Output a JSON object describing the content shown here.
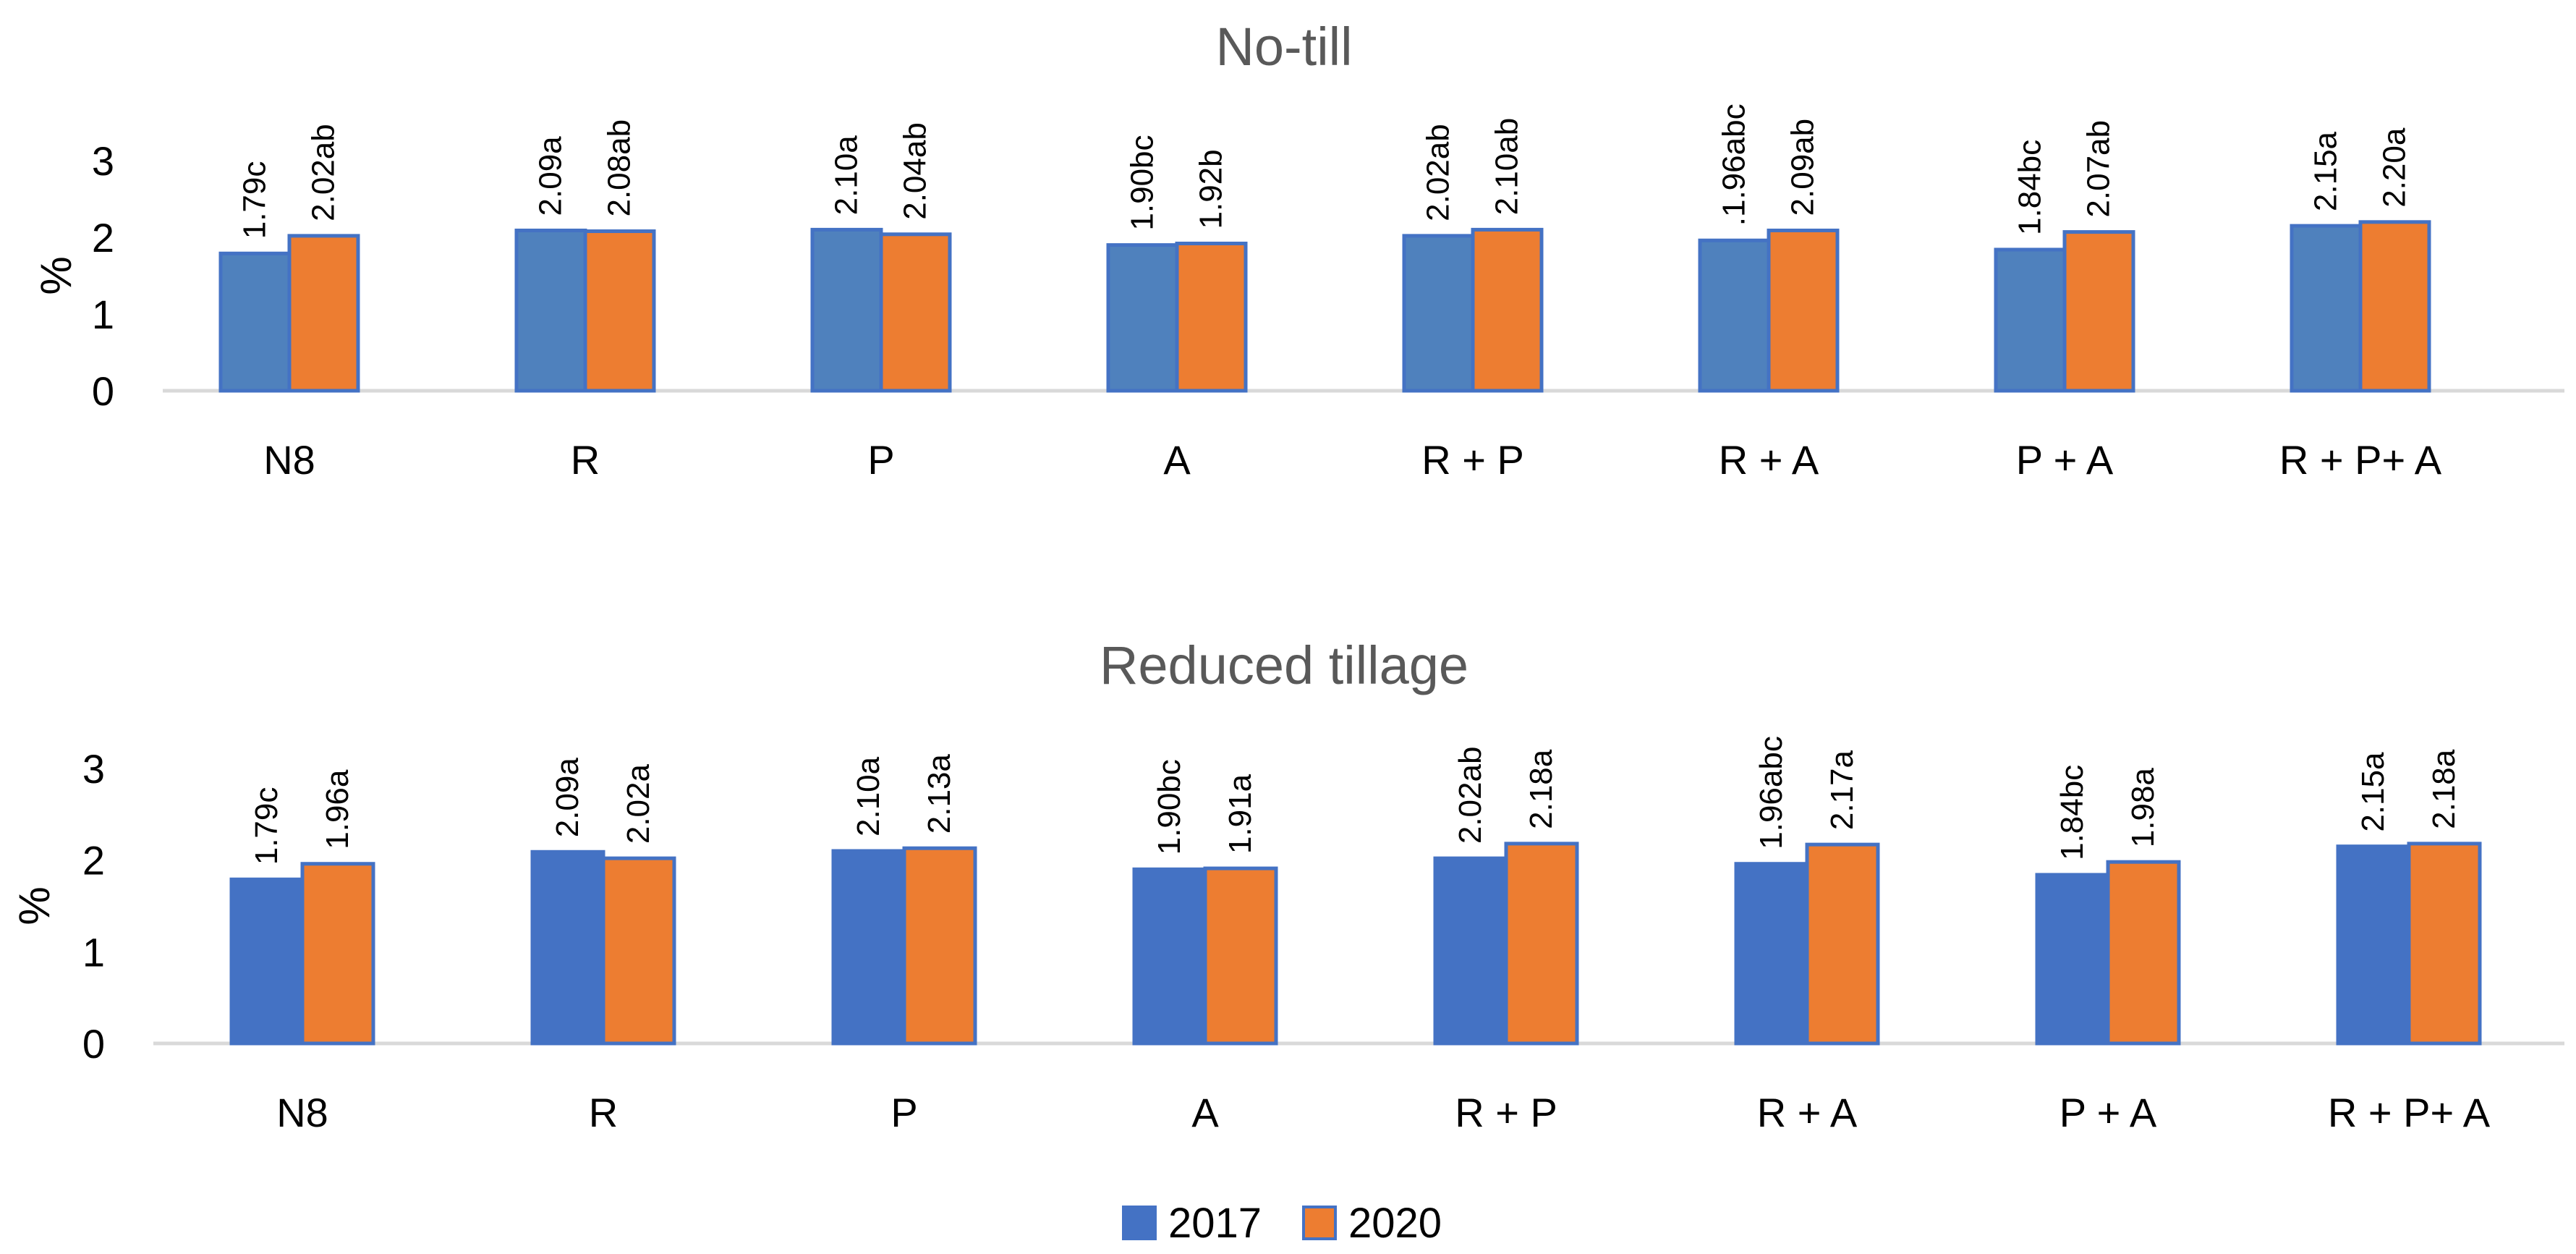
{
  "legend": [
    {
      "name": "2017",
      "color": "#4472C4"
    },
    {
      "name": "2020",
      "color": "#ED7D31"
    }
  ],
  "chart_data": [
    {
      "type": "bar",
      "title": "No-till",
      "xlabel": "",
      "ylabel": "%",
      "ylim": [
        0,
        3
      ],
      "yticks": [
        0,
        1,
        2,
        3
      ],
      "grid": false,
      "categories": [
        "N8",
        "R",
        "P",
        "A",
        "R + P",
        "R + A",
        "P +  A",
        "R + P+ A"
      ],
      "series": [
        {
          "name": "2017",
          "color": "#4F81BD",
          "values": [
            1.79,
            2.09,
            2.1,
            1.9,
            2.02,
            1.96,
            1.84,
            2.15
          ],
          "labels": [
            "1.79c",
            "2.09a",
            "2.10a",
            "1.90bc",
            "2.02ab",
            ".1.96abc",
            "1.84bc",
            "2.15a"
          ]
        },
        {
          "name": "2020",
          "color": "#ED7D31",
          "values": [
            2.02,
            2.08,
            2.04,
            1.92,
            2.1,
            2.09,
            2.07,
            2.2
          ],
          "labels": [
            "2.02ab",
            "2.08ab",
            "2.04ab",
            "1.92b",
            "2.10ab",
            "2.09ab",
            "2.07ab",
            "2.20a"
          ]
        }
      ]
    },
    {
      "type": "bar",
      "title": "Reduced tillage",
      "xlabel": "",
      "ylabel": "%",
      "ylim": [
        0,
        3
      ],
      "yticks": [
        0,
        1,
        2,
        3
      ],
      "grid": false,
      "categories": [
        "N8",
        "R",
        "P",
        "A",
        "R + P",
        "R + A",
        "P +  A",
        "R + P+ A"
      ],
      "series": [
        {
          "name": "2017",
          "color": "#4472C4",
          "values": [
            1.79,
            2.09,
            2.1,
            1.9,
            2.02,
            1.96,
            1.84,
            2.15
          ],
          "labels": [
            "1.79c",
            "2.09a",
            "2.10a",
            "1.90bc",
            "2.02ab",
            "1.96abc",
            "1.84bc",
            "2.15a"
          ]
        },
        {
          "name": "2020",
          "color": "#ED7D31",
          "values": [
            1.96,
            2.02,
            2.13,
            1.91,
            2.18,
            2.17,
            1.98,
            2.18
          ],
          "labels": [
            "1.96a",
            "2.02a",
            "2.13a",
            "1.91a",
            "2.18a",
            "2.17a",
            "1.98a",
            "2.18a"
          ]
        }
      ]
    }
  ]
}
